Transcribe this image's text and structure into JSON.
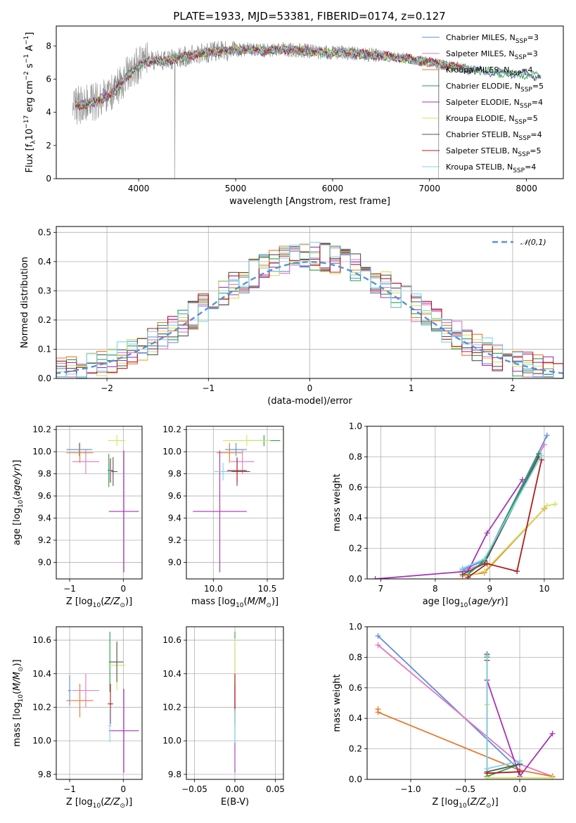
{
  "figure": {
    "title": "PLATE=1933, MJD=53381, FIBERID=0174, z=0.127"
  },
  "colors": {
    "Chabrier MILES": "#5b8fd9",
    "Salpeter MILES": "#e377c2",
    "Kroupa MILES": "#e6792b",
    "Chabrier ELODIE": "#2a9d4a",
    "Salpeter ELODIE": "#a633b8",
    "Kroupa ELODIE": "#d4e35e",
    "Chabrier STELIB": "#555555",
    "Salpeter STELIB": "#b01c1c",
    "Kroupa STELIB": "#7fd6e6",
    "data": "#8a8a8a",
    "grid": "#b0b0b0"
  },
  "chart_data": [
    {
      "type": "line",
      "id": "spectrum",
      "xlabel": "wavelength [Angstrom, rest frame]",
      "ylabel": "Flux [f_λ 10^-17 erg cm^-2 s^-1 A^-1]",
      "xlim": [
        3150,
        8380
      ],
      "ylim": [
        0,
        9.2
      ],
      "xticks": [
        4000,
        5000,
        6000,
        7000,
        8000
      ],
      "yticks": [
        0,
        2,
        4,
        6,
        8
      ],
      "grid": false,
      "legend_position": "right",
      "series": [
        {
          "name": "Chabrier MILES, N_SSP=3"
        },
        {
          "name": "Salpeter MILES, N_SSP=3"
        },
        {
          "name": "Kroupa MILES, N_SSP=4"
        },
        {
          "name": "Chabrier ELODIE, N_SSP=5"
        },
        {
          "name": "Salpeter ELODIE, N_SSP=4"
        },
        {
          "name": "Kroupa ELODIE, N_SSP=5"
        },
        {
          "name": "Chabrier STELIB, N_SSP=4"
        },
        {
          "name": "Salpeter STELIB, N_SSP=5"
        },
        {
          "name": "Kroupa STELIB, N_SSP=4"
        }
      ],
      "model_curve": {
        "x": [
          3350,
          3450,
          3550,
          3650,
          3750,
          3850,
          3950,
          4050,
          4150,
          4300,
          4500,
          4700,
          4900,
          5100,
          5300,
          5500,
          5700,
          5900,
          6100,
          6300,
          6500,
          6700,
          6900,
          7100,
          7300,
          7500,
          7700,
          7900,
          8100
        ],
        "y": [
          4.4,
          4.5,
          4.6,
          4.9,
          5.2,
          6.0,
          6.6,
          7.0,
          7.1,
          7.1,
          7.4,
          7.6,
          7.7,
          7.8,
          7.7,
          7.8,
          7.7,
          7.6,
          7.6,
          7.5,
          7.4,
          7.3,
          7.1,
          6.9,
          6.7,
          6.5,
          6.4,
          6.3,
          6.2
        ]
      },
      "data_range": [
        3320,
        7480
      ]
    },
    {
      "type": "line",
      "id": "residual-distribution",
      "xlabel": "(data-model)/error",
      "ylabel": "Normed distribution",
      "xlim": [
        -2.5,
        2.5
      ],
      "ylim": [
        0,
        0.52
      ],
      "xticks": [
        -2,
        -1,
        0,
        1,
        2
      ],
      "yticks": [
        0.0,
        0.1,
        0.2,
        0.3,
        0.4,
        0.5
      ],
      "grid": true,
      "legend_position": "top-right",
      "reference_label": "𝒩(0,1)",
      "bin_width": 0.1
    },
    {
      "type": "scatter",
      "id": "age-vs-Z",
      "xlabel": "Z [log10(Z/Z☉)]",
      "ylabel": "age  [log10(age/yr)]",
      "xlim": [
        -1.25,
        0.35
      ],
      "ylim": [
        8.85,
        10.23
      ],
      "xticks": [
        -1,
        0
      ],
      "yticks": [
        9.0,
        9.2,
        9.4,
        9.6,
        9.8,
        10.0,
        10.2
      ],
      "grid": true,
      "points": [
        {
          "model": "Chabrier MILES",
          "x": -0.82,
          "y": 10.02,
          "xerr": 0.24,
          "yerr": 0.06
        },
        {
          "model": "Salpeter MILES",
          "x": -0.7,
          "y": 9.91,
          "xerr": 0.25,
          "yerr": 0.11
        },
        {
          "model": "Kroupa MILES",
          "x": -0.81,
          "y": 9.99,
          "xerr": 0.25,
          "yerr": 0.09
        },
        {
          "model": "Chabrier ELODIE",
          "x": -0.27,
          "y": 9.83,
          "xerr": 0.01,
          "yerr": 0.15
        },
        {
          "model": "Salpeter ELODIE",
          "x": 0.01,
          "y": 9.46,
          "xerr": 0.28,
          "yerr": 0.55
        },
        {
          "model": "Kroupa ELODIE",
          "x": -0.12,
          "y": 10.1,
          "xerr": 0.16,
          "yerr": 0.05
        },
        {
          "model": "Chabrier STELIB",
          "x": -0.19,
          "y": 9.82,
          "xerr": 0.08,
          "yerr": 0.13
        },
        {
          "model": "Salpeter STELIB",
          "x": -0.24,
          "y": 9.83,
          "xerr": 0.05,
          "yerr": 0.11
        },
        {
          "model": "Kroupa STELIB",
          "x": -0.25,
          "y": 9.82,
          "xerr": 0.03,
          "yerr": 0.08
        }
      ]
    },
    {
      "type": "scatter",
      "id": "age-vs-mass",
      "xlabel": "mass [log10(M/M☉)]",
      "ylabel": "",
      "xlim": [
        9.75,
        10.65
      ],
      "ylim": [
        8.85,
        10.23
      ],
      "xticks": [
        10.0,
        10.5
      ],
      "yticks": [
        9.0,
        9.2,
        9.4,
        9.6,
        9.8,
        10.0,
        10.2
      ],
      "grid": true,
      "points": [
        {
          "model": "Chabrier MILES",
          "x": 10.21,
          "y": 10.02,
          "xerr": 0.1,
          "yerr": 0.06
        },
        {
          "model": "Salpeter MILES",
          "x": 10.27,
          "y": 9.91,
          "xerr": 0.11,
          "yerr": 0.11
        },
        {
          "model": "Kroupa MILES",
          "x": 10.15,
          "y": 9.99,
          "xerr": 0.12,
          "yerr": 0.09
        },
        {
          "model": "Chabrier ELODIE",
          "x": 10.47,
          "y": 10.1,
          "xerr": 0.15,
          "yerr": 0.05
        },
        {
          "model": "Salpeter ELODIE",
          "x": 10.06,
          "y": 9.46,
          "xerr": 0.25,
          "yerr": 0.55
        },
        {
          "model": "Kroupa ELODIE",
          "x": 10.31,
          "y": 10.1,
          "xerr": 0.22,
          "yerr": 0.05
        },
        {
          "model": "Chabrier STELIB",
          "x": 10.22,
          "y": 9.82,
          "xerr": 0.12,
          "yerr": 0.13
        },
        {
          "model": "Salpeter STELIB",
          "x": 10.22,
          "y": 9.83,
          "xerr": 0.09,
          "yerr": 0.11
        },
        {
          "model": "Kroupa STELIB",
          "x": 10.09,
          "y": 9.82,
          "xerr": 0.08,
          "yerr": 0.08
        }
      ]
    },
    {
      "type": "line",
      "id": "mass-weight-vs-age",
      "xlabel": "age  [log10(age/yr)]",
      "ylabel": "mass weight",
      "xlim": [
        6.75,
        10.35
      ],
      "ylim": [
        0,
        1.0
      ],
      "xticks": [
        7,
        8,
        9,
        10
      ],
      "yticks": [
        0.0,
        0.2,
        0.4,
        0.6,
        0.8,
        1.0
      ],
      "grid": true,
      "series": [
        {
          "model": "Chabrier MILES",
          "x": [
            8.5,
            8.9,
            10.05
          ],
          "y": [
            0.06,
            0.12,
            0.94
          ]
        },
        {
          "model": "Salpeter MILES",
          "x": [
            8.5,
            8.9,
            10.0
          ],
          "y": [
            0.05,
            0.1,
            0.88
          ]
        },
        {
          "model": "Kroupa MILES",
          "x": [
            8.5,
            8.9,
            10.0
          ],
          "y": [
            0.02,
            0.04,
            0.46
          ]
        },
        {
          "model": "Chabrier ELODIE",
          "x": [
            8.6,
            8.9,
            9.9
          ],
          "y": [
            0.03,
            0.12,
            0.82
          ]
        },
        {
          "model": "Salpeter ELODIE",
          "x": [
            6.9,
            8.6,
            8.95,
            9.6
          ],
          "y": [
            0.0,
            0.05,
            0.3,
            0.65
          ]
        },
        {
          "model": "Kroupa ELODIE",
          "x": [
            8.6,
            8.9,
            10.05,
            10.2
          ],
          "y": [
            0.02,
            0.05,
            0.48,
            0.49
          ]
        },
        {
          "model": "Chabrier STELIB",
          "x": [
            8.5,
            8.9,
            9.9
          ],
          "y": [
            0.03,
            0.1,
            0.8
          ]
        },
        {
          "model": "Salpeter STELIB",
          "x": [
            8.6,
            8.95,
            9.5,
            9.95
          ],
          "y": [
            0.01,
            0.1,
            0.05,
            0.78
          ]
        },
        {
          "model": "Kroupa STELIB",
          "x": [
            8.5,
            8.9,
            9.95
          ],
          "y": [
            0.07,
            0.13,
            0.81
          ]
        }
      ]
    },
    {
      "type": "scatter",
      "id": "mass-vs-Z",
      "xlabel": "Z [log10(Z/Z☉)]",
      "ylabel": "mass [log10(M/M☉)]",
      "xlim": [
        -1.25,
        0.35
      ],
      "ylim": [
        9.77,
        10.68
      ],
      "xticks": [
        -1,
        0
      ],
      "yticks": [
        9.8,
        10.0,
        10.2,
        10.4,
        10.6
      ],
      "grid": true,
      "points": [
        {
          "model": "Chabrier MILES",
          "x": -1.0,
          "y": 10.3,
          "xerr": 0.03,
          "yerr": 0.09
        },
        {
          "model": "Salpeter MILES",
          "x": -0.7,
          "y": 10.3,
          "xerr": 0.25,
          "yerr": 0.1
        },
        {
          "model": "Kroupa MILES",
          "x": -0.81,
          "y": 10.24,
          "xerr": 0.25,
          "yerr": 0.1
        },
        {
          "model": "Chabrier ELODIE",
          "x": -0.25,
          "y": 10.47,
          "xerr": 0.02,
          "yerr": 0.18
        },
        {
          "model": "Salpeter ELODIE",
          "x": 0.01,
          "y": 10.06,
          "xerr": 0.28,
          "yerr": 0.25
        },
        {
          "model": "Kroupa ELODIE",
          "x": -0.12,
          "y": 10.45,
          "xerr": 0.16,
          "yerr": 0.15
        },
        {
          "model": "Chabrier STELIB",
          "x": -0.12,
          "y": 10.47,
          "xerr": 0.12,
          "yerr": 0.12
        },
        {
          "model": "Salpeter STELIB",
          "x": -0.24,
          "y": 10.22,
          "xerr": 0.05,
          "yerr": 0.12
        },
        {
          "model": "Kroupa STELIB",
          "x": -0.25,
          "y": 10.09,
          "xerr": 0.03,
          "yerr": 0.1
        }
      ]
    },
    {
      "type": "scatter",
      "id": "mass-vs-EBV",
      "xlabel": "E(B-V)",
      "ylabel": "",
      "xlim": [
        -0.06,
        0.06
      ],
      "ylim": [
        9.77,
        10.68
      ],
      "xticks": [
        -0.05,
        0.0,
        0.05
      ],
      "yticks": [
        9.8,
        10.0,
        10.2,
        10.4,
        10.6
      ],
      "grid": true,
      "points": [
        {
          "model": "Chabrier MILES",
          "x": 0.0,
          "y": 10.21,
          "xerr": 0,
          "yerr": 0.1
        },
        {
          "model": "Salpeter MILES",
          "x": 0.0,
          "y": 10.27,
          "xerr": 0,
          "yerr": 0.1
        },
        {
          "model": "Kroupa MILES",
          "x": 0.0,
          "y": 10.15,
          "xerr": 0,
          "yerr": 0.1
        },
        {
          "model": "Chabrier ELODIE",
          "x": 0.0,
          "y": 10.47,
          "xerr": 0,
          "yerr": 0.18
        },
        {
          "model": "Salpeter ELODIE",
          "x": 0.0,
          "y": 10.06,
          "xerr": 0,
          "yerr": 0.25
        },
        {
          "model": "Kroupa ELODIE",
          "x": 0.0,
          "y": 10.31,
          "xerr": 0,
          "yerr": 0.3
        },
        {
          "model": "Chabrier STELIB",
          "x": 0.0,
          "y": 10.22,
          "xerr": 0,
          "yerr": 0.12
        },
        {
          "model": "Salpeter STELIB",
          "x": 0.0,
          "y": 10.28,
          "xerr": 0,
          "yerr": 0.12
        },
        {
          "model": "Kroupa STELIB",
          "x": 0.0,
          "y": 10.09,
          "xerr": 0,
          "yerr": 0.1
        }
      ]
    },
    {
      "type": "line",
      "id": "mass-weight-vs-Z",
      "xlabel": "Z [log10(Z/Z☉)]",
      "ylabel": "mass weight",
      "xlim": [
        -1.4,
        0.4
      ],
      "ylim": [
        0,
        1.0
      ],
      "xticks": [
        -1.0,
        -0.5,
        0.0
      ],
      "yticks": [
        0.0,
        0.2,
        0.4,
        0.6,
        0.8,
        1.0
      ],
      "grid": true,
      "series": [
        {
          "model": "Chabrier MILES",
          "x": [
            -1.3,
            0.0
          ],
          "y": [
            0.94,
            0.06
          ]
        },
        {
          "model": "Salpeter MILES",
          "x": [
            -1.3,
            0.0,
            0.3
          ],
          "y": [
            0.88,
            0.1,
            0.02
          ]
        },
        {
          "model": "Kroupa MILES",
          "x": [
            -1.3,
            -1.3,
            0.0,
            0.3
          ],
          "y": [
            0.46,
            0.44,
            0.06,
            0.02
          ]
        },
        {
          "model": "Chabrier ELODIE",
          "x": [
            -0.3,
            -0.3,
            0.0
          ],
          "y": [
            0.8,
            0.02,
            0.1
          ]
        },
        {
          "model": "Salpeter ELODIE",
          "x": [
            -0.3,
            0.0,
            0.3
          ],
          "y": [
            0.65,
            0.02,
            0.3
          ]
        },
        {
          "model": "Kroupa ELODIE",
          "x": [
            -0.3,
            -0.3,
            0.0,
            0.3
          ],
          "y": [
            0.49,
            0.01,
            0.01,
            0.01
          ]
        },
        {
          "model": "Chabrier STELIB",
          "x": [
            -0.3,
            -0.3,
            0.0
          ],
          "y": [
            0.82,
            0.05,
            0.1
          ]
        },
        {
          "model": "Salpeter STELIB",
          "x": [
            -0.3,
            -0.3,
            0.0
          ],
          "y": [
            0.78,
            0.04,
            0.05
          ]
        },
        {
          "model": "Kroupa STELIB",
          "x": [
            -0.3,
            -0.3,
            0.0
          ],
          "y": [
            0.81,
            0.07,
            0.12
          ]
        }
      ]
    }
  ]
}
